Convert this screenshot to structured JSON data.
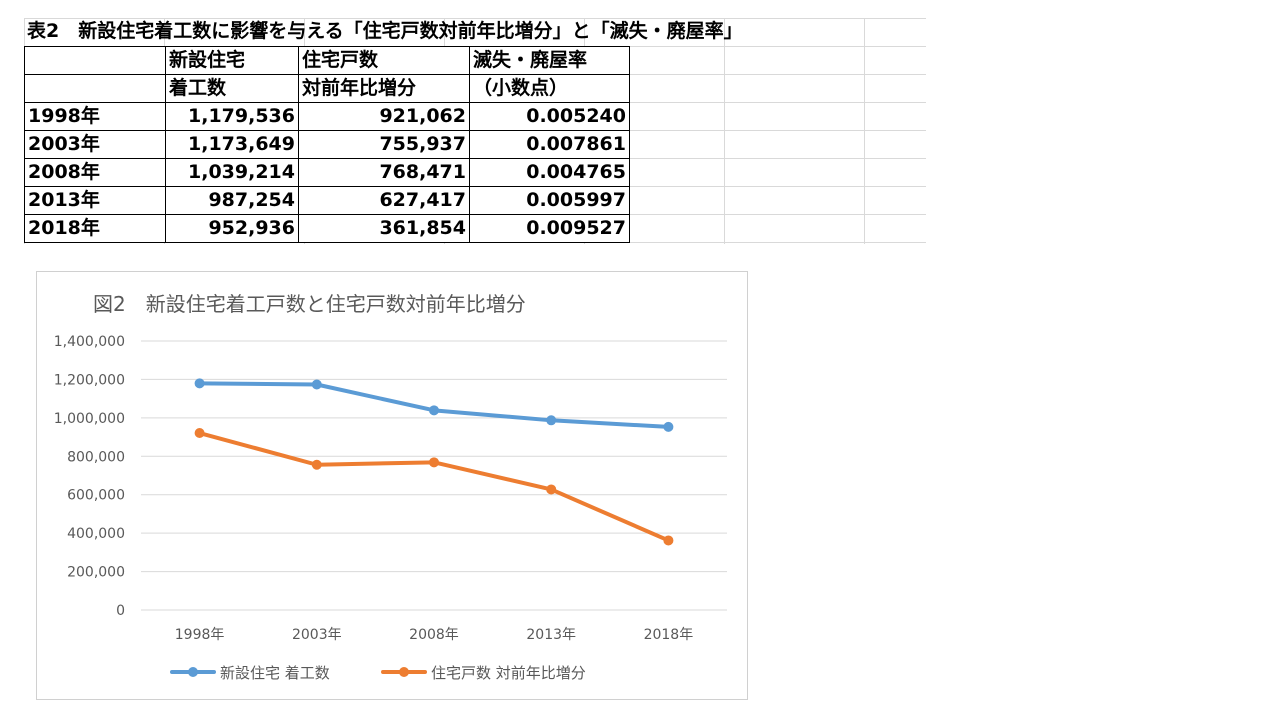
{
  "table": {
    "title": "表2　新設住宅着工数に影響を与える「住宅戸数対前年比増分」と「滅失・廃屋率」",
    "headers": [
      [
        "",
        ""
      ],
      [
        "新設住宅",
        "着工数"
      ],
      [
        "住宅戸数",
        "対前年比増分"
      ],
      [
        "滅失・廃屋率",
        "（小数点）"
      ]
    ],
    "rows": [
      {
        "year": "1998年",
        "starts": "1,179,536",
        "increase": "921,062",
        "rate": "0.005240"
      },
      {
        "year": "2003年",
        "starts": "1,173,649",
        "increase": "755,937",
        "rate": "0.007861"
      },
      {
        "year": "2008年",
        "starts": "1,039,214",
        "increase": "768,471",
        "rate": "0.004765"
      },
      {
        "year": "2013年",
        "starts": "987,254",
        "increase": "627,417",
        "rate": "0.005997"
      },
      {
        "year": "2018年",
        "starts": "952,936",
        "increase": "361,854",
        "rate": "0.009527"
      }
    ]
  },
  "chart_data": {
    "type": "line",
    "title": "図2　新設住宅着工戸数と住宅戸数対前年比増分",
    "categories": [
      "1998年",
      "2003年",
      "2008年",
      "2013年",
      "2018年"
    ],
    "yticks": [
      "0",
      "200,000",
      "400,000",
      "600,000",
      "800,000",
      "1,000,000",
      "1,200,000",
      "1,400,000"
    ],
    "ylim": [
      0,
      1400000
    ],
    "grid": true,
    "legend": "bottom",
    "series": [
      {
        "name": "新設住宅 着工数",
        "color": "#5b9bd5",
        "values": [
          1179536,
          1173649,
          1039214,
          987254,
          952936
        ]
      },
      {
        "name": "住宅戸数 対前年比増分",
        "color": "#ed7d31",
        "values": [
          921062,
          755937,
          768471,
          627417,
          361854
        ]
      }
    ]
  }
}
